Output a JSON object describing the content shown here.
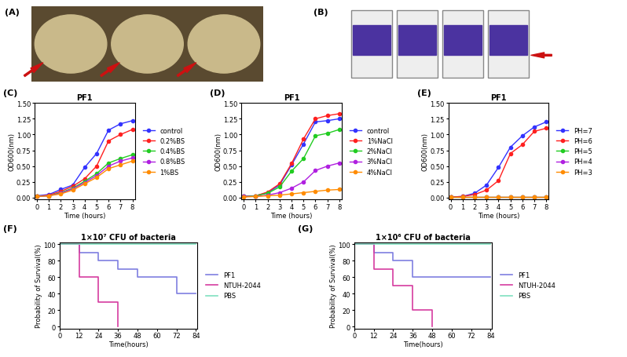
{
  "images": [
    {
      "label": "(A)"
    },
    {
      "label": "(B)"
    }
  ],
  "chart_data": [
    {
      "type": "line",
      "annotations": [
        "(C)"
      ],
      "title": "PF1",
      "x_label": "Time (hours)",
      "y_label": "OD600(nm)",
      "x": [
        0,
        1,
        2,
        3,
        4,
        5,
        6,
        7,
        8
      ],
      "xlim": [
        -0.2,
        8.2
      ],
      "xticks": [
        0,
        1,
        2,
        3,
        4,
        5,
        6,
        7,
        8
      ],
      "ylim": [
        -0.03,
        1.5
      ],
      "yticks": [
        {
          "value": 0,
          "label": "0.00"
        },
        {
          "value": 0.25,
          "label": "0.25"
        },
        {
          "value": 0.5,
          "label": "0.50"
        },
        {
          "value": 0.75,
          "label": "0.75"
        },
        {
          "value": 1.0,
          "label": "1.00"
        },
        {
          "value": 1.25,
          "label": "1.25"
        },
        {
          "value": 1.5,
          "label": "1.50"
        }
      ],
      "legend": "center left",
      "marker": "o",
      "series": [
        {
          "name": "control",
          "color": "#3333ff",
          "values": [
            0.03,
            0.05,
            0.13,
            0.2,
            0.48,
            0.7,
            1.07,
            1.17,
            1.22
          ]
        },
        {
          "name": "0.2%BS",
          "color": "#ff2020",
          "values": [
            0.02,
            0.04,
            0.1,
            0.18,
            0.3,
            0.5,
            0.9,
            1.0,
            1.08
          ]
        },
        {
          "name": "0.4%BS",
          "color": "#22cc22",
          "values": [
            0.02,
            0.03,
            0.08,
            0.15,
            0.26,
            0.38,
            0.55,
            0.62,
            0.68
          ]
        },
        {
          "name": "0.8%BS",
          "color": "#b020e0",
          "values": [
            0.02,
            0.03,
            0.07,
            0.14,
            0.24,
            0.35,
            0.5,
            0.58,
            0.63
          ]
        },
        {
          "name": "1%BS",
          "color": "#ff8c00",
          "values": [
            0.02,
            0.03,
            0.06,
            0.12,
            0.22,
            0.32,
            0.46,
            0.52,
            0.58
          ]
        }
      ]
    },
    {
      "type": "line",
      "annotations": [
        "(D)"
      ],
      "title": "PF1",
      "x_label": "Time (hours)",
      "y_label": "OD600(nm)",
      "x": [
        0,
        1,
        2,
        3,
        4,
        5,
        6,
        7,
        8
      ],
      "xlim": [
        -0.2,
        8.2
      ],
      "xticks": [
        0,
        1,
        2,
        3,
        4,
        5,
        6,
        7,
        8
      ],
      "ylim": [
        -0.03,
        1.5
      ],
      "yticks": [
        {
          "value": 0,
          "label": "0.00"
        },
        {
          "value": 0.25,
          "label": "0.25"
        },
        {
          "value": 0.5,
          "label": "0.50"
        },
        {
          "value": 0.75,
          "label": "0.75"
        },
        {
          "value": 1.0,
          "label": "1.00"
        },
        {
          "value": 1.25,
          "label": "1.25"
        },
        {
          "value": 1.5,
          "label": "1.50"
        }
      ],
      "legend": "center left",
      "marker": "o",
      "series": [
        {
          "name": "control",
          "color": "#3333ff",
          "values": [
            0.02,
            0.03,
            0.08,
            0.2,
            0.52,
            0.85,
            1.2,
            1.22,
            1.25
          ]
        },
        {
          "name": "1%NaCl",
          "color": "#ff2020",
          "values": [
            0.02,
            0.03,
            0.09,
            0.22,
            0.54,
            0.93,
            1.25,
            1.3,
            1.33
          ]
        },
        {
          "name": "2%NaCl",
          "color": "#22cc22",
          "values": [
            0.02,
            0.03,
            0.07,
            0.17,
            0.42,
            0.62,
            0.98,
            1.02,
            1.08
          ]
        },
        {
          "name": "3%NaCl",
          "color": "#b020e0",
          "values": [
            0.02,
            0.02,
            0.04,
            0.08,
            0.15,
            0.25,
            0.43,
            0.5,
            0.55
          ]
        },
        {
          "name": "4%NaCl",
          "color": "#ff8c00",
          "values": [
            0.01,
            0.02,
            0.03,
            0.04,
            0.06,
            0.08,
            0.1,
            0.12,
            0.13
          ]
        }
      ]
    },
    {
      "type": "line",
      "annotations": [
        "(E)"
      ],
      "title": "PF1",
      "x_label": "Time (hours)",
      "y_label": "OD600(nm)",
      "x": [
        0,
        1,
        2,
        3,
        4,
        5,
        6,
        7,
        8
      ],
      "xlim": [
        -0.2,
        8.2
      ],
      "xticks": [
        0,
        1,
        2,
        3,
        4,
        5,
        6,
        7,
        8
      ],
      "ylim": [
        -0.03,
        1.5
      ],
      "yticks": [
        {
          "value": 0,
          "label": "0.00"
        },
        {
          "value": 0.25,
          "label": "0.25"
        },
        {
          "value": 0.5,
          "label": "0.50"
        },
        {
          "value": 0.75,
          "label": "0.75"
        },
        {
          "value": 1.0,
          "label": "1.00"
        },
        {
          "value": 1.25,
          "label": "1.25"
        },
        {
          "value": 1.5,
          "label": "1.50"
        }
      ],
      "legend": "center left",
      "marker": "o",
      "series": [
        {
          "name": "PH=7",
          "color": "#3333ff",
          "values": [
            0.01,
            0.02,
            0.07,
            0.2,
            0.48,
            0.8,
            0.98,
            1.12,
            1.2
          ]
        },
        {
          "name": "PH=6",
          "color": "#ff2020",
          "values": [
            0.01,
            0.02,
            0.05,
            0.12,
            0.27,
            0.7,
            0.84,
            1.05,
            1.1
          ]
        },
        {
          "name": "PH=5",
          "color": "#22cc22",
          "values": [
            0.01,
            0.01,
            0.01,
            0.01,
            0.01,
            0.01,
            0.01,
            0.01,
            0.01
          ]
        },
        {
          "name": "PH=4",
          "color": "#b020e0",
          "values": [
            0.01,
            0.01,
            0.01,
            0.01,
            0.01,
            0.01,
            0.01,
            0.01,
            0.01
          ]
        },
        {
          "name": "PH=3",
          "color": "#ff8c00",
          "values": [
            0.01,
            0.01,
            0.01,
            0.01,
            0.01,
            0.01,
            0.01,
            0.01,
            0.01
          ]
        }
      ]
    },
    {
      "type": "step",
      "annotations": [
        "(F)"
      ],
      "title": "1×10⁷ CFU of bacteria",
      "x_label": "Time(hours)",
      "y_label": "Probability of Survival(%)",
      "xlim": [
        0,
        85
      ],
      "xticks": [
        0,
        12,
        24,
        36,
        48,
        60,
        72,
        84
      ],
      "ylim": [
        -2,
        102
      ],
      "yticks": [
        0,
        20,
        40,
        60,
        80,
        100
      ],
      "legend": "center left",
      "series": [
        {
          "name": "PF1",
          "color": "#7f7fe0",
          "x": [
            0,
            12,
            24,
            36,
            48,
            60,
            72,
            84
          ],
          "values": [
            100,
            90,
            80,
            70,
            60,
            60,
            40,
            40
          ]
        },
        {
          "name": "NTUH-2044",
          "color": "#d63ca0",
          "x": [
            0,
            12,
            24,
            36
          ],
          "values": [
            100,
            60,
            30,
            0
          ]
        },
        {
          "name": "PBS",
          "color": "#7fe0c0",
          "x": [
            0,
            84
          ],
          "values": [
            100,
            100
          ]
        }
      ]
    },
    {
      "type": "step",
      "annotations": [
        "(G)"
      ],
      "title": "1×10⁶ CFU of bacteria",
      "x_label": "Time(hours)",
      "y_label": "Probability of Survival(%)",
      "xlim": [
        0,
        85
      ],
      "xticks": [
        0,
        12,
        24,
        36,
        48,
        60,
        72,
        84
      ],
      "ylim": [
        -2,
        102
      ],
      "yticks": [
        0,
        20,
        40,
        60,
        80,
        100
      ],
      "legend": "center left",
      "series": [
        {
          "name": "PF1",
          "color": "#7f7fe0",
          "x": [
            0,
            12,
            24,
            36,
            84
          ],
          "values": [
            100,
            90,
            80,
            60,
            60
          ]
        },
        {
          "name": "NTUH-2044",
          "color": "#d63ca0",
          "x": [
            0,
            12,
            24,
            36,
            48
          ],
          "values": [
            100,
            70,
            50,
            20,
            0
          ]
        },
        {
          "name": "PBS",
          "color": "#7fe0c0",
          "x": [
            0,
            84
          ],
          "values": [
            100,
            100
          ]
        }
      ]
    }
  ]
}
